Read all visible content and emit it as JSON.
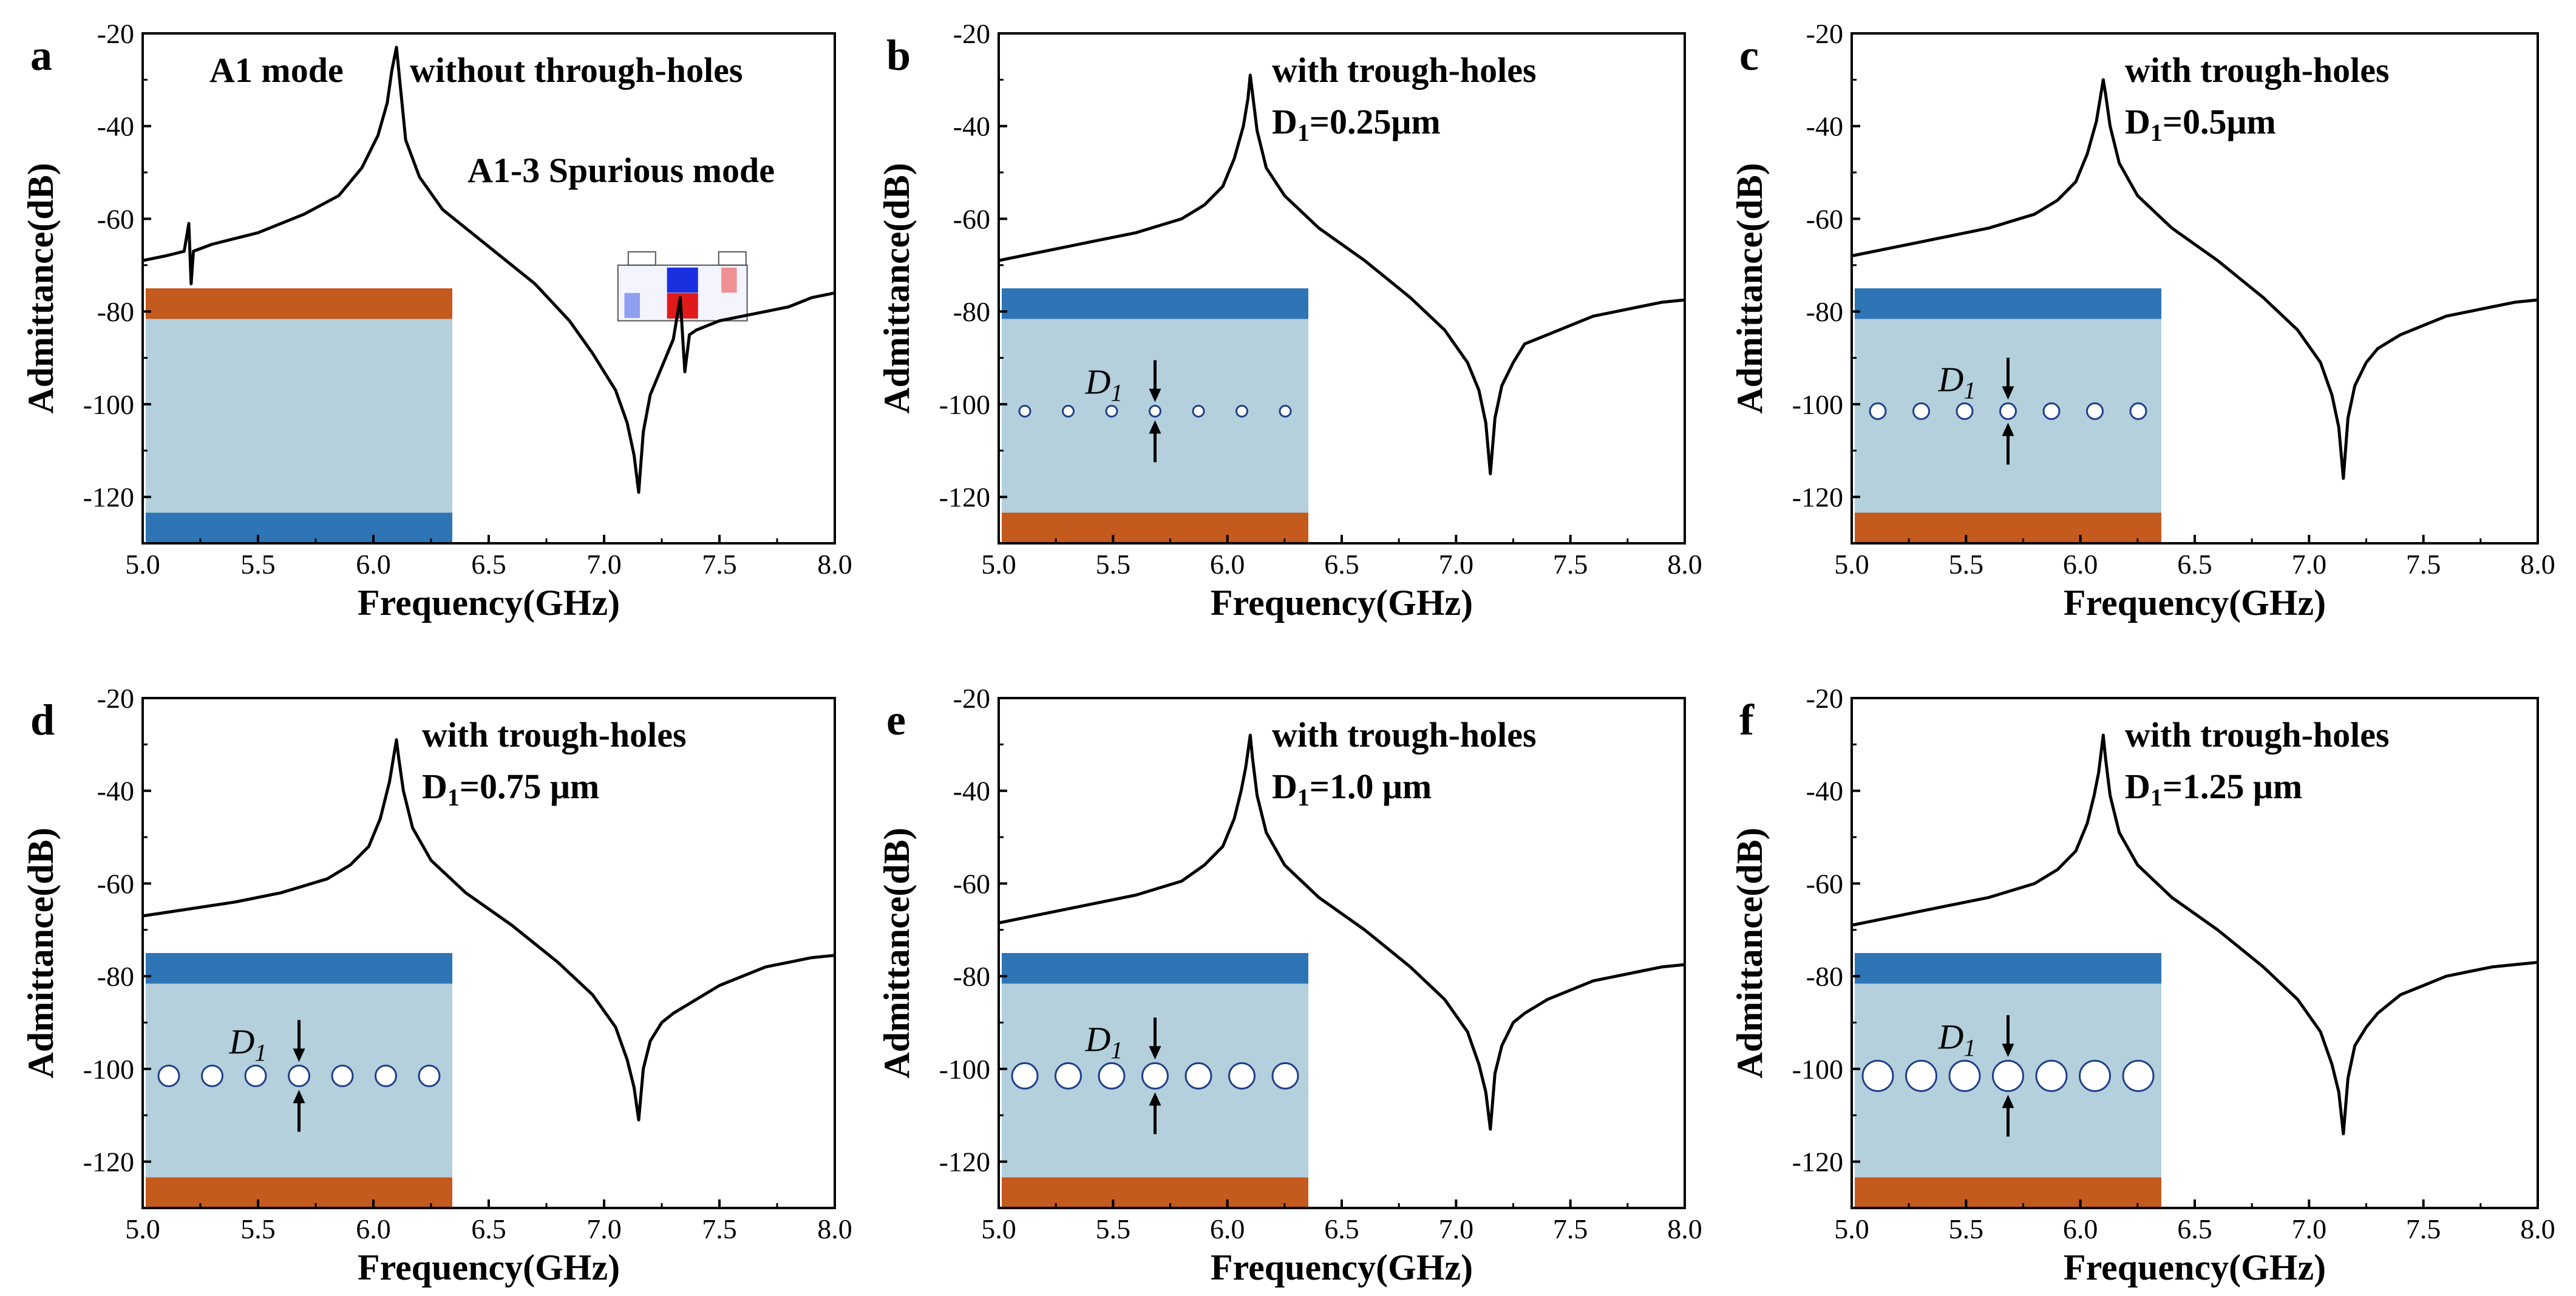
{
  "colors": {
    "line": "#000000",
    "substrate_blue": "#2e75b6",
    "film_light": "#b3d0dc",
    "electrode_orange": "#c55a1e",
    "hole_edge": "#1f3f8a",
    "hole_fill": "#ffffff"
  },
  "chart_data": [
    {
      "panel": "a",
      "type": "line",
      "xlabel": "Frequency(GHz)",
      "ylabel": "Admittance(dB)",
      "xlim": [
        5.0,
        8.0
      ],
      "ylim": [
        -130,
        -20
      ],
      "xticks": [
        "5.0",
        "5.5",
        "6.0",
        "6.5",
        "7.0",
        "7.5",
        "8.0"
      ],
      "yticks": [
        "-20",
        "-40",
        "-60",
        "-80",
        "-100",
        "-120"
      ],
      "annotations": [
        "A1 mode",
        "without through-holes",
        "A1-3 Spurious mode"
      ],
      "label_line1": "",
      "label_line2": "",
      "inset": {
        "top": "orange",
        "bottom": "blue",
        "holes": 0
      },
      "series": [
        {
          "x": [
            5.0,
            5.1,
            5.18,
            5.2,
            5.21,
            5.22,
            5.3,
            5.5,
            5.7,
            5.85,
            5.95,
            6.02,
            6.06,
            6.08,
            6.1,
            6.12,
            6.14,
            6.2,
            6.3,
            6.5,
            6.7,
            6.85,
            6.95,
            7.05,
            7.1,
            7.13,
            7.15,
            7.17,
            7.2,
            7.25,
            7.3,
            7.33,
            7.35,
            7.37,
            7.4,
            7.5,
            7.6,
            7.7,
            7.8,
            7.9,
            8.0
          ],
          "y": [
            -69,
            -68,
            -67,
            -61,
            -74,
            -67,
            -65.5,
            -63,
            -59,
            -55,
            -49,
            -42,
            -35,
            -28,
            -23,
            -33,
            -43,
            -51,
            -58,
            -66,
            -74,
            -82,
            -89,
            -97,
            -104,
            -111,
            -119,
            -106,
            -98,
            -92,
            -86,
            -77,
            -93,
            -85,
            -84,
            -82,
            -81,
            -80,
            -79,
            -77,
            -76
          ]
        }
      ]
    },
    {
      "panel": "b",
      "type": "line",
      "xlabel": "Frequency(GHz)",
      "ylabel": "Admittance(dB)",
      "xlim": [
        5.0,
        8.0
      ],
      "ylim": [
        -130,
        -20
      ],
      "xticks": [
        "5.0",
        "5.5",
        "6.0",
        "6.5",
        "7.0",
        "7.5",
        "8.0"
      ],
      "yticks": [
        "-20",
        "-40",
        "-60",
        "-80",
        "-100",
        "-120"
      ],
      "annotations": [
        "with trough-holes"
      ],
      "label_line1": "with trough-holes",
      "label_line2": "=0.25μm",
      "inset": {
        "top": "blue",
        "bottom": "orange",
        "holes": 0.25,
        "d_label": "D",
        "d_sub": "1"
      },
      "series": [
        {
          "x": [
            5.0,
            5.2,
            5.4,
            5.6,
            5.8,
            5.9,
            5.98,
            6.03,
            6.07,
            6.09,
            6.1,
            6.11,
            6.13,
            6.17,
            6.25,
            6.4,
            6.6,
            6.8,
            6.95,
            7.05,
            7.1,
            7.13,
            7.15,
            7.17,
            7.2,
            7.25,
            7.3,
            7.4,
            7.5,
            7.6,
            7.7,
            7.8,
            7.9,
            8.0
          ],
          "y": [
            -69,
            -67,
            -65,
            -63,
            -60,
            -57,
            -53,
            -47,
            -40,
            -34,
            -29,
            -33,
            -41,
            -49,
            -55,
            -62,
            -69,
            -77,
            -84,
            -91,
            -97,
            -104,
            -115,
            -103,
            -96,
            -91,
            -87,
            -85,
            -83,
            -81,
            -80,
            -79,
            -78,
            -77.5
          ]
        }
      ]
    },
    {
      "panel": "c",
      "type": "line",
      "xlabel": "Frequency(GHz)",
      "ylabel": "Admittance(dB)",
      "xlim": [
        5.0,
        8.0
      ],
      "ylim": [
        -130,
        -20
      ],
      "xticks": [
        "5.0",
        "5.5",
        "6.0",
        "6.5",
        "7.0",
        "7.5",
        "8.0"
      ],
      "yticks": [
        "-20",
        "-40",
        "-60",
        "-80",
        "-100",
        "-120"
      ],
      "annotations": [
        "with trough-holes"
      ],
      "label_line1": "with trough-holes",
      "label_line2": "=0.5μm",
      "inset": {
        "top": "blue",
        "bottom": "orange",
        "holes": 0.5,
        "d_label": "D",
        "d_sub": "1"
      },
      "series": [
        {
          "x": [
            5.0,
            5.2,
            5.4,
            5.6,
            5.8,
            5.9,
            5.98,
            6.03,
            6.07,
            6.09,
            6.1,
            6.11,
            6.13,
            6.17,
            6.25,
            6.4,
            6.6,
            6.8,
            6.95,
            7.05,
            7.1,
            7.13,
            7.15,
            7.17,
            7.2,
            7.25,
            7.3,
            7.4,
            7.5,
            7.6,
            7.7,
            7.8,
            7.9,
            8.0
          ],
          "y": [
            -68,
            -66,
            -64,
            -62,
            -59,
            -56,
            -52,
            -46,
            -39,
            -33,
            -30,
            -33,
            -40,
            -48,
            -55,
            -62,
            -69,
            -77,
            -84,
            -91,
            -98,
            -105,
            -116,
            -103,
            -96,
            -91,
            -88,
            -85,
            -83,
            -81,
            -80,
            -79,
            -78,
            -77.5
          ]
        }
      ]
    },
    {
      "panel": "d",
      "type": "line",
      "xlabel": "Frequency(GHz)",
      "ylabel": "Admittance(dB)",
      "xlim": [
        5.0,
        8.0
      ],
      "ylim": [
        -130,
        -20
      ],
      "xticks": [
        "5.0",
        "5.5",
        "6.0",
        "6.5",
        "7.0",
        "7.5",
        "8.0"
      ],
      "yticks": [
        "-20",
        "-40",
        "-60",
        "-80",
        "-100",
        "-120"
      ],
      "annotations": [
        "with trough-holes"
      ],
      "label_line1": "with trough-holes",
      "label_line2": "=0.75 μm",
      "inset": {
        "top": "blue",
        "bottom": "orange",
        "holes": 0.75,
        "d_label": "D",
        "d_sub": "1"
      },
      "series": [
        {
          "x": [
            5.0,
            5.2,
            5.4,
            5.6,
            5.8,
            5.9,
            5.98,
            6.03,
            6.07,
            6.09,
            6.1,
            6.11,
            6.13,
            6.17,
            6.25,
            6.4,
            6.6,
            6.8,
            6.95,
            7.05,
            7.1,
            7.13,
            7.15,
            7.17,
            7.2,
            7.25,
            7.3,
            7.4,
            7.5,
            7.6,
            7.7,
            7.8,
            7.9,
            8.0
          ],
          "y": [
            -67,
            -65.5,
            -64,
            -62,
            -59,
            -56,
            -52,
            -46,
            -38,
            -32,
            -29,
            -33,
            -40,
            -48,
            -55,
            -62,
            -69,
            -77,
            -84,
            -91,
            -98,
            -104,
            -111,
            -100,
            -94,
            -90,
            -88,
            -85,
            -82,
            -80,
            -78,
            -77,
            -76,
            -75.5
          ]
        }
      ]
    },
    {
      "panel": "e",
      "type": "line",
      "xlabel": "Frequency(GHz)",
      "ylabel": "Admittance(dB)",
      "xlim": [
        5.0,
        8.0
      ],
      "ylim": [
        -130,
        -20
      ],
      "xticks": [
        "5.0",
        "5.5",
        "6.0",
        "6.5",
        "7.0",
        "7.5",
        "8.0"
      ],
      "yticks": [
        "-20",
        "-40",
        "-60",
        "-80",
        "-100",
        "-120"
      ],
      "annotations": [
        "with trough-holes"
      ],
      "label_line1": "with trough-holes",
      "label_line2": "=1.0 μm",
      "inset": {
        "top": "blue",
        "bottom": "orange",
        "holes": 1.0,
        "d_label": "D",
        "d_sub": "1"
      },
      "series": [
        {
          "x": [
            5.0,
            5.2,
            5.4,
            5.6,
            5.8,
            5.9,
            5.98,
            6.03,
            6.06,
            6.08,
            6.1,
            6.11,
            6.13,
            6.17,
            6.25,
            6.4,
            6.6,
            6.8,
            6.95,
            7.05,
            7.1,
            7.13,
            7.15,
            7.17,
            7.2,
            7.25,
            7.3,
            7.4,
            7.5,
            7.6,
            7.7,
            7.8,
            7.9,
            8.0
          ],
          "y": [
            -68.5,
            -66.5,
            -64.5,
            -62.5,
            -59.5,
            -56,
            -52,
            -46,
            -40,
            -35,
            -28,
            -33,
            -41,
            -49,
            -56,
            -63,
            -70,
            -78,
            -85,
            -92,
            -99,
            -105,
            -113,
            -101,
            -95,
            -90,
            -88,
            -85,
            -83,
            -81,
            -80,
            -79,
            -78,
            -77.5
          ]
        }
      ]
    },
    {
      "panel": "f",
      "type": "line",
      "xlabel": "Frequency(GHz)",
      "ylabel": "Admittance(dB)",
      "xlim": [
        5.0,
        8.0
      ],
      "ylim": [
        -130,
        -20
      ],
      "xticks": [
        "5.0",
        "5.5",
        "6.0",
        "6.5",
        "7.0",
        "7.5",
        "8.0"
      ],
      "yticks": [
        "-20",
        "-40",
        "-60",
        "-80",
        "-100",
        "-120"
      ],
      "annotations": [
        "with trough-holes"
      ],
      "label_line1": "with trough-holes",
      "label_line2": "=1.25 μm",
      "inset": {
        "top": "blue",
        "bottom": "orange",
        "holes": 1.25,
        "d_label": "D",
        "d_sub": "1"
      },
      "series": [
        {
          "x": [
            5.0,
            5.2,
            5.4,
            5.6,
            5.8,
            5.9,
            5.98,
            6.03,
            6.06,
            6.08,
            6.1,
            6.11,
            6.13,
            6.17,
            6.25,
            6.4,
            6.6,
            6.8,
            6.95,
            7.05,
            7.1,
            7.13,
            7.15,
            7.17,
            7.2,
            7.25,
            7.3,
            7.4,
            7.5,
            7.6,
            7.7,
            7.8,
            7.9,
            8.0
          ],
          "y": [
            -69,
            -67,
            -65,
            -63,
            -60,
            -57,
            -53,
            -47,
            -41,
            -36,
            -28,
            -33,
            -41,
            -49,
            -56,
            -63,
            -70,
            -78,
            -85,
            -92,
            -99,
            -105,
            -114,
            -102,
            -95,
            -91,
            -88,
            -84,
            -82,
            -80,
            -79,
            -78,
            -77.5,
            -77
          ]
        }
      ]
    }
  ]
}
